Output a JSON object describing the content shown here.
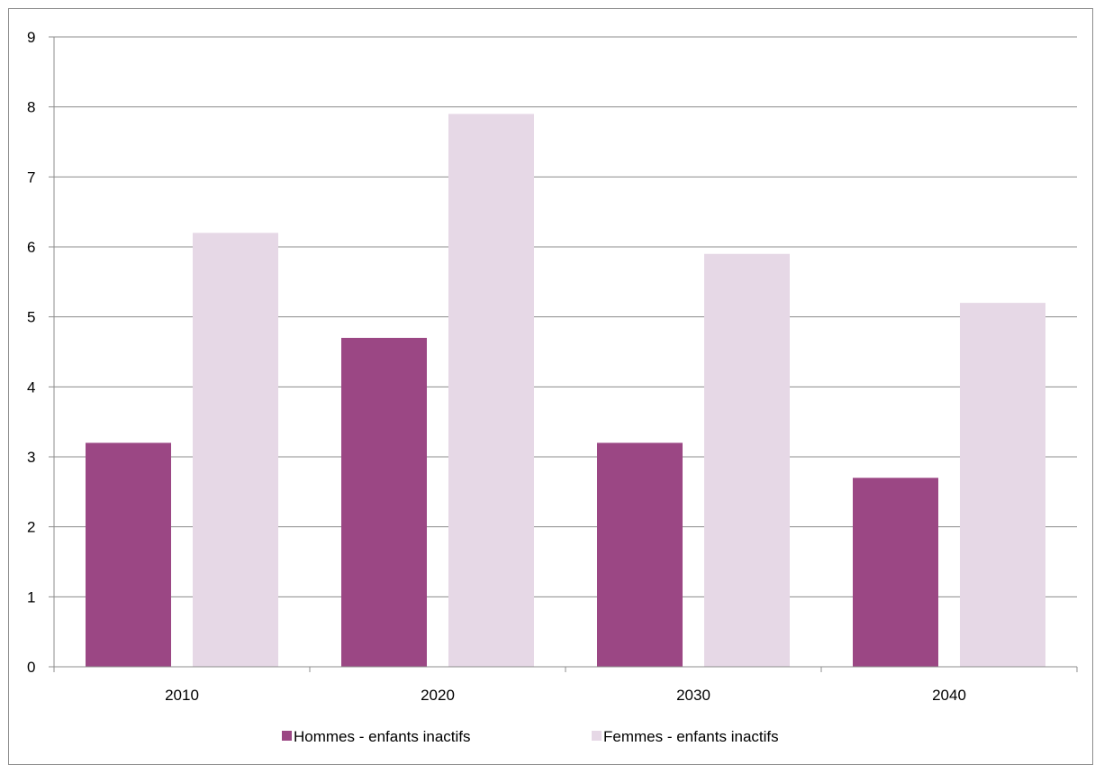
{
  "chart_data": {
    "type": "bar",
    "title": "",
    "xlabel": "",
    "ylabel": "",
    "categories": [
      "2010",
      "2020",
      "2030",
      "2040"
    ],
    "series": [
      {
        "name": "Hommes - enfants inactifs",
        "color": "#9b4784",
        "values": [
          3.2,
          4.7,
          3.2,
          2.7
        ]
      },
      {
        "name": "Femmes - enfants inactifs",
        "color": "#e6d8e6",
        "values": [
          6.2,
          7.9,
          5.9,
          5.2
        ]
      }
    ],
    "ylim": [
      0,
      9
    ],
    "yticks": [
      "0",
      "1",
      "2",
      "3",
      "4",
      "5",
      "6",
      "7",
      "8",
      "9"
    ],
    "grid": true,
    "legend_position": "bottom"
  }
}
